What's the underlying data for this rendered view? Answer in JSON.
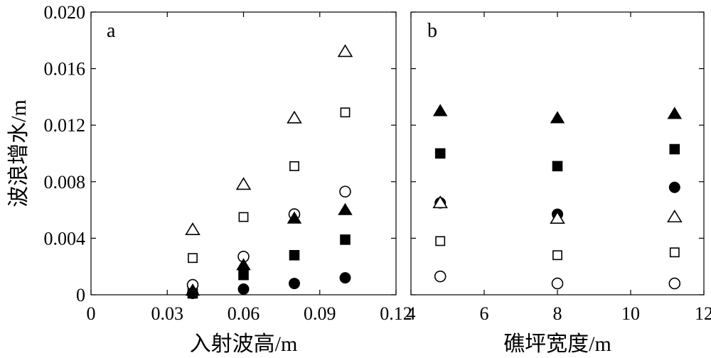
{
  "figure": {
    "ylabel": "波浪增水/m",
    "yticks": [
      "0",
      "0.004",
      "0.008",
      "0.012",
      "0.016",
      "0.020"
    ],
    "ytick_values": [
      0,
      0.004,
      0.008,
      0.012,
      0.016,
      0.02
    ]
  },
  "chart_data": [
    {
      "type": "scatter",
      "panel": "a",
      "xlabel": "入射波高/m",
      "ylabel": "波浪增水/m",
      "xlim": [
        0,
        0.12
      ],
      "ylim": [
        0,
        0.02
      ],
      "xticks": [
        0,
        0.03,
        0.06,
        0.09,
        0.12
      ],
      "xtick_labels": [
        "0",
        "0.03",
        "0.06",
        "0.09",
        "0.12"
      ],
      "grid": false,
      "series": [
        {
          "marker": "triangle-open",
          "x": [
            0.04,
            0.06,
            0.08,
            0.1
          ],
          "y": [
            0.0046,
            0.0078,
            0.0125,
            0.0172
          ]
        },
        {
          "marker": "square-open",
          "x": [
            0.04,
            0.06,
            0.08,
            0.1
          ],
          "y": [
            0.0026,
            0.0055,
            0.0091,
            0.0129
          ]
        },
        {
          "marker": "circle-open",
          "x": [
            0.04,
            0.06,
            0.08,
            0.1
          ],
          "y": [
            0.0007,
            0.0027,
            0.0057,
            0.0073
          ]
        },
        {
          "marker": "triangle-filled",
          "x": [
            0.04,
            0.06,
            0.08,
            0.1
          ],
          "y": [
            0.0003,
            0.0021,
            0.0054,
            0.006
          ]
        },
        {
          "marker": "square-filled",
          "x": [
            0.04,
            0.06,
            0.08,
            0.1
          ],
          "y": [
            0.0001,
            0.0014,
            0.0028,
            0.0039
          ]
        },
        {
          "marker": "circle-filled",
          "x": [
            0.04,
            0.06,
            0.08,
            0.1
          ],
          "y": [
            0.0001,
            0.0004,
            0.0008,
            0.0012
          ]
        }
      ]
    },
    {
      "type": "scatter",
      "panel": "b",
      "xlabel": "礁坪宽度/m",
      "ylabel": "",
      "xlim": [
        4,
        12
      ],
      "ylim": [
        0,
        0.02
      ],
      "xticks": [
        4,
        6,
        8,
        10,
        12
      ],
      "xtick_labels": [
        "4",
        "6",
        "8",
        "10",
        "12"
      ],
      "grid": false,
      "series": [
        {
          "marker": "triangle-filled",
          "x": [
            4.8,
            8.0,
            11.2
          ],
          "y": [
            0.013,
            0.0125,
            0.0128
          ]
        },
        {
          "marker": "square-filled",
          "x": [
            4.8,
            8.0,
            11.2
          ],
          "y": [
            0.01,
            0.0091,
            0.0103
          ]
        },
        {
          "marker": "circle-filled",
          "x": [
            4.8,
            8.0,
            11.2
          ],
          "y": [
            0.0065,
            0.0057,
            0.0076
          ]
        },
        {
          "marker": "triangle-open",
          "x": [
            4.8,
            8.0,
            11.2
          ],
          "y": [
            0.0065,
            0.0054,
            0.0055
          ]
        },
        {
          "marker": "square-open",
          "x": [
            4.8,
            8.0,
            11.2
          ],
          "y": [
            0.0038,
            0.0028,
            0.003
          ]
        },
        {
          "marker": "circle-open",
          "x": [
            4.8,
            8.0,
            11.2
          ],
          "y": [
            0.0013,
            0.0008,
            0.0008
          ]
        }
      ]
    }
  ]
}
